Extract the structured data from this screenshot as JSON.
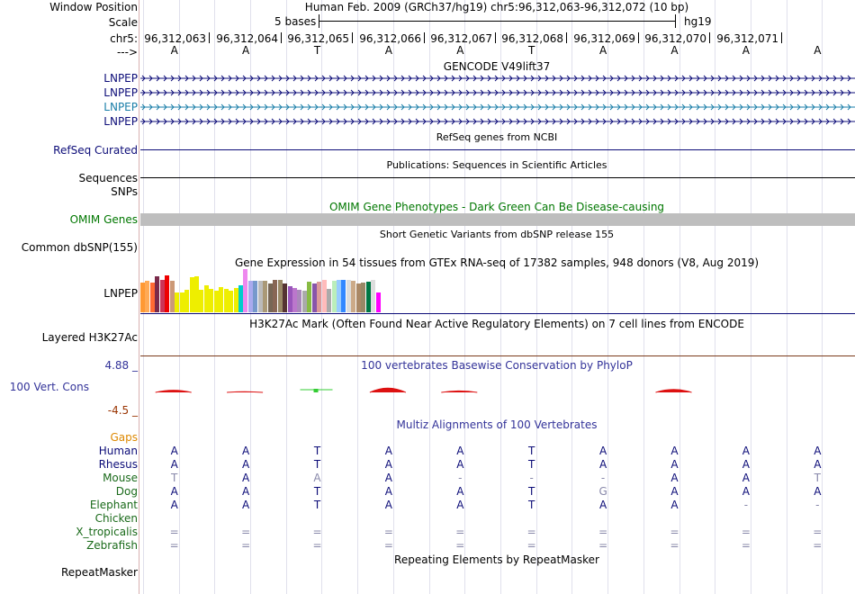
{
  "header": {
    "window_position_label": "Window Position",
    "window_position_text": "Human Feb. 2009 (GRCh37/hg19)   chr5:96,312,063-96,312,072 (10 bp)",
    "scale_label": "Scale",
    "scale_text": "5 bases",
    "scale_assembly": "hg19",
    "chrom_label": "chr5:",
    "strand_label": "--->",
    "positions": [
      "96,312,063",
      "96,312,064",
      "96,312,065",
      "96,312,066",
      "96,312,067",
      "96,312,068",
      "96,312,069",
      "96,312,070",
      "96,312,071"
    ],
    "bases": [
      "A",
      "A",
      "T",
      "A",
      "A",
      "T",
      "A",
      "A",
      "A",
      "A"
    ]
  },
  "gencode": {
    "title": "GENCODE V49lift37",
    "genes": [
      {
        "name": "LNPEP",
        "color": "#0c0c78"
      },
      {
        "name": "LNPEP",
        "color": "#0c0c78"
      },
      {
        "name": "LNPEP",
        "color": "#1a7ea8"
      },
      {
        "name": "LNPEP",
        "color": "#0c0c78"
      }
    ]
  },
  "refseq": {
    "title": "RefSeq genes from NCBI",
    "label": "RefSeq Curated"
  },
  "publications": {
    "title": "Publications: Sequences in Scientific Articles",
    "label": "Sequences"
  },
  "snps_label": "SNPs",
  "omim": {
    "title": "OMIM Gene Phenotypes - Dark Green Can Be Disease-causing",
    "label": "OMIM Genes"
  },
  "dbsnp": {
    "title": "Short Genetic Variants from dbSNP release 155",
    "label": "Common dbSNP(155)"
  },
  "gtex": {
    "title": "Gene Expression in 54 tissues from GTEx RNA-seq of 17382 samples, 948 donors (V8, Aug 2019)",
    "label": "LNPEP",
    "bars": [
      {
        "v": 0.68,
        "c": "#ff9933"
      },
      {
        "v": 0.72,
        "c": "#ffaa55"
      },
      {
        "v": 0.68,
        "c": "#ff6a33"
      },
      {
        "v": 0.84,
        "c": "#7a2a4a"
      },
      {
        "v": 0.76,
        "c": "#cc3355"
      },
      {
        "v": 0.86,
        "c": "#ee0000"
      },
      {
        "v": 0.72,
        "c": "#cc9977"
      },
      {
        "v": 0.45,
        "c": "#eeee00"
      },
      {
        "v": 0.45,
        "c": "#eeee00"
      },
      {
        "v": 0.53,
        "c": "#eeee00"
      },
      {
        "v": 0.82,
        "c": "#eeee00"
      },
      {
        "v": 0.84,
        "c": "#eeee00"
      },
      {
        "v": 0.53,
        "c": "#eeee00"
      },
      {
        "v": 0.62,
        "c": "#eeee00"
      },
      {
        "v": 0.55,
        "c": "#eeee00"
      },
      {
        "v": 0.49,
        "c": "#eeee00"
      },
      {
        "v": 0.59,
        "c": "#eeee00"
      },
      {
        "v": 0.55,
        "c": "#eeee00"
      },
      {
        "v": 0.49,
        "c": "#eeee00"
      },
      {
        "v": 0.57,
        "c": "#eeee00"
      },
      {
        "v": 0.62,
        "c": "#00cccc"
      },
      {
        "v": 1.0,
        "c": "#ee88ee"
      },
      {
        "v": 0.72,
        "c": "#aaaaee"
      },
      {
        "v": 0.72,
        "c": "#7799cc"
      },
      {
        "v": 0.72,
        "c": "#bbbbbb"
      },
      {
        "v": 0.72,
        "c": "#aa9977"
      },
      {
        "v": 0.66,
        "c": "#776655"
      },
      {
        "v": 0.76,
        "c": "#886655"
      },
      {
        "v": 0.74,
        "c": "#998866"
      },
      {
        "v": 0.66,
        "c": "#553333"
      },
      {
        "v": 0.61,
        "c": "#9955bb"
      },
      {
        "v": 0.57,
        "c": "#bb77cc"
      },
      {
        "v": 0.53,
        "c": "#aa88bb"
      },
      {
        "v": 0.49,
        "c": "#aaaaaa"
      },
      {
        "v": 0.7,
        "c": "#88bb44"
      },
      {
        "v": 0.66,
        "c": "#8855aa"
      },
      {
        "v": 0.7,
        "c": "#dd9999"
      },
      {
        "v": 0.74,
        "c": "#ffbbbb"
      },
      {
        "v": 0.55,
        "c": "#aaaaaa"
      },
      {
        "v": 0.72,
        "c": "#bbeebb"
      },
      {
        "v": 0.74,
        "c": "#99ccff"
      },
      {
        "v": 0.76,
        "c": "#3388ff"
      },
      {
        "v": 0.74,
        "c": "#dddddd"
      },
      {
        "v": 0.72,
        "c": "#ccaa88"
      },
      {
        "v": 0.66,
        "c": "#aa8866"
      },
      {
        "v": 0.68,
        "c": "#998866"
      },
      {
        "v": 0.7,
        "c": "#007744"
      },
      {
        "v": 0.74,
        "c": "#dddddd"
      },
      {
        "v": 0.46,
        "c": "#ff00ff"
      }
    ]
  },
  "h3k27ac": {
    "title": "H3K27Ac Mark (Often Found Near Active Regulatory Elements) on 7 cell lines from ENCODE",
    "label": "Layered H3K27Ac"
  },
  "phylop": {
    "title": "100 vertebrates Basewise Conservation by PhyloP",
    "label": "100 Vert. Cons",
    "max_label": "4.88 _",
    "min_label": "-4.5 _",
    "scores": [
      0.3,
      0.08,
      0.1,
      0.6,
      0.15,
      0.0,
      0.0,
      0.4,
      0.0,
      0.0
    ],
    "colors": [
      "#dd1111",
      "#dd1111",
      "#33cc33",
      "#dd1111",
      "#dd1111",
      "#dd1111",
      "#dd1111",
      "#dd1111",
      "#dd1111",
      "#dd1111"
    ]
  },
  "multiz": {
    "title": "Multiz Alignments of 100 Vertebrates",
    "gaps_label": "Gaps",
    "species": [
      {
        "name": "Human",
        "color": "#0c0c78",
        "bases": [
          "A",
          "A",
          "T",
          "A",
          "A",
          "T",
          "A",
          "A",
          "A",
          "A"
        ]
      },
      {
        "name": "Rhesus",
        "color": "#0c0c78",
        "bases": [
          "A",
          "A",
          "T",
          "A",
          "A",
          "T",
          "A",
          "A",
          "A",
          "A"
        ]
      },
      {
        "name": "Mouse",
        "color": "#1a6a1a",
        "bases": [
          "T",
          "A",
          "A",
          "A",
          "-",
          "-",
          "-",
          "A",
          "A",
          "T"
        ]
      },
      {
        "name": "Dog",
        "color": "#1a6a1a",
        "bases": [
          "A",
          "A",
          "T",
          "A",
          "A",
          "T",
          "G",
          "A",
          "A",
          "A"
        ]
      },
      {
        "name": "Elephant",
        "color": "#1a6a1a",
        "bases": [
          "A",
          "A",
          "T",
          "A",
          "A",
          "T",
          "A",
          "A",
          "-",
          "-"
        ]
      },
      {
        "name": "Chicken",
        "color": "#1a6a1a",
        "bases": [
          "",
          "",
          "",
          "",
          "",
          "",
          "",
          "",
          "",
          ""
        ]
      },
      {
        "name": "X_tropicalis",
        "color": "#1a6a1a",
        "bases": [
          "=",
          "=",
          "=",
          "=",
          "=",
          "=",
          "=",
          "=",
          "=",
          "="
        ]
      },
      {
        "name": "Zebrafish",
        "color": "#1a6a1a",
        "bases": [
          "=",
          "=",
          "=",
          "=",
          "=",
          "=",
          "=",
          "=",
          "=",
          "="
        ]
      }
    ],
    "faint": {
      "Mouse": [
        true,
        false,
        true,
        false,
        true,
        true,
        true,
        false,
        false,
        true
      ],
      "Dog": [
        false,
        false,
        false,
        false,
        false,
        false,
        true,
        false,
        false,
        false
      ],
      "Elephant": [
        false,
        false,
        false,
        false,
        false,
        false,
        false,
        false,
        true,
        true
      ]
    }
  },
  "repeatmasker": {
    "title": "Repeating Elements by RepeatMasker",
    "label": "RepeatMasker"
  },
  "colors": {
    "navy": "#0c0c78",
    "green_label": "#1a6a1a",
    "omim_label": "#007700",
    "gaps_label": "#dd8800",
    "phylop_label": "#333399",
    "phylop_min": "#993300",
    "omim_bar": "#bebebe",
    "h3k27_line": "#7a3a1a",
    "grid": "#e0e0ec"
  }
}
